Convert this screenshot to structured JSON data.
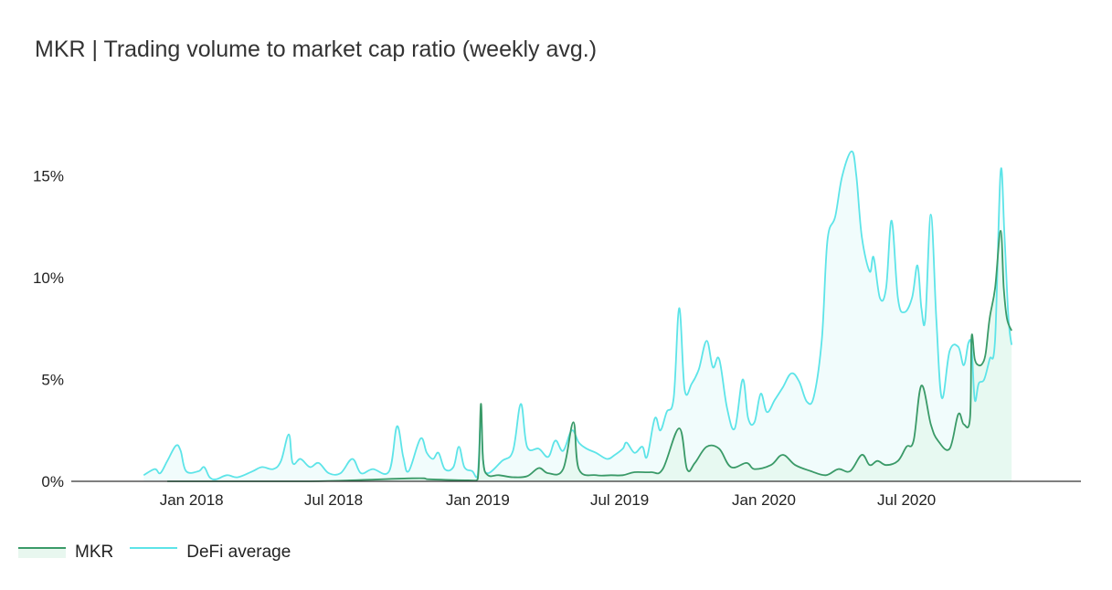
{
  "chart_data": {
    "type": "area",
    "title": "MKR | Trading volume to market cap ratio (weekly avg.)",
    "x_tick_labels": [
      "Jan 2018",
      "Jul 2018",
      "Jan 2019",
      "Jul 2019",
      "Jan 2020",
      "Jul 2020"
    ],
    "y_tick_labels": [
      "0%",
      "5%",
      "10%",
      "15%"
    ],
    "y_ticks": [
      0,
      5,
      10,
      15
    ],
    "ylim": [
      0,
      17
    ],
    "xlim": [
      "2017-09-01",
      "2021-01-01"
    ],
    "grid": false,
    "legend_position": "bottom-left",
    "colors": {
      "mkr_line": "#3a9a68",
      "mkr_fill": "#e6f8f0",
      "defi_line": "#5de4e8",
      "defi_fill": "#eefcfc",
      "axis": "#333333"
    },
    "series": [
      {
        "name": "MKR",
        "points": [
          [
            "2017-12-01",
            0.0
          ],
          [
            "2018-06-01",
            0.0
          ],
          [
            "2018-10-10",
            0.15
          ],
          [
            "2018-11-01",
            0.1
          ],
          [
            "2018-12-20",
            0.05
          ],
          [
            "2019-01-01",
            0.1
          ],
          [
            "2019-01-05",
            3.8
          ],
          [
            "2019-01-08",
            1.0
          ],
          [
            "2019-01-14",
            0.3
          ],
          [
            "2019-01-28",
            0.3
          ],
          [
            "2019-02-15",
            0.2
          ],
          [
            "2019-03-05",
            0.25
          ],
          [
            "2019-03-20",
            0.65
          ],
          [
            "2019-04-01",
            0.4
          ],
          [
            "2019-04-20",
            0.6
          ],
          [
            "2019-05-03",
            2.9
          ],
          [
            "2019-05-10",
            0.6
          ],
          [
            "2019-06-01",
            0.3
          ],
          [
            "2019-06-20",
            0.3
          ],
          [
            "2019-07-05",
            0.3
          ],
          [
            "2019-07-20",
            0.45
          ],
          [
            "2019-08-10",
            0.45
          ],
          [
            "2019-08-25",
            0.6
          ],
          [
            "2019-09-15",
            2.6
          ],
          [
            "2019-09-25",
            0.6
          ],
          [
            "2019-10-05",
            0.9
          ],
          [
            "2019-10-20",
            1.7
          ],
          [
            "2019-11-05",
            1.6
          ],
          [
            "2019-11-20",
            0.7
          ],
          [
            "2019-12-10",
            0.9
          ],
          [
            "2019-12-20",
            0.6
          ],
          [
            "2020-01-10",
            0.8
          ],
          [
            "2020-01-25",
            1.3
          ],
          [
            "2020-02-10",
            0.8
          ],
          [
            "2020-03-01",
            0.5
          ],
          [
            "2020-03-20",
            0.3
          ],
          [
            "2020-04-05",
            0.6
          ],
          [
            "2020-04-20",
            0.5
          ],
          [
            "2020-05-05",
            1.3
          ],
          [
            "2020-05-15",
            0.8
          ],
          [
            "2020-05-25",
            1.0
          ],
          [
            "2020-06-05",
            0.8
          ],
          [
            "2020-06-20",
            1.0
          ],
          [
            "2020-07-01",
            1.7
          ],
          [
            "2020-07-10",
            2.0
          ],
          [
            "2020-07-20",
            4.7
          ],
          [
            "2020-08-01",
            2.8
          ],
          [
            "2020-08-10",
            2.0
          ],
          [
            "2020-08-25",
            1.6
          ],
          [
            "2020-09-05",
            3.3
          ],
          [
            "2020-09-12",
            2.8
          ],
          [
            "2020-09-20",
            3.1
          ],
          [
            "2020-09-22",
            7.1
          ],
          [
            "2020-09-26",
            6.0
          ],
          [
            "2020-10-01",
            5.7
          ],
          [
            "2020-10-06",
            5.8
          ],
          [
            "2020-10-10",
            6.3
          ],
          [
            "2020-10-15",
            8.0
          ],
          [
            "2020-10-22",
            9.5
          ],
          [
            "2020-10-29",
            12.3
          ],
          [
            "2020-11-02",
            9.5
          ],
          [
            "2020-11-06",
            8.0
          ],
          [
            "2020-11-12",
            7.4
          ]
        ]
      },
      {
        "name": "DeFi average",
        "points": [
          [
            "2017-11-01",
            0.3
          ],
          [
            "2017-11-15",
            0.6
          ],
          [
            "2017-11-22",
            0.4
          ],
          [
            "2017-12-01",
            1.0
          ],
          [
            "2017-12-12",
            1.75
          ],
          [
            "2017-12-18",
            1.5
          ],
          [
            "2017-12-25",
            0.5
          ],
          [
            "2018-01-10",
            0.5
          ],
          [
            "2018-01-17",
            0.7
          ],
          [
            "2018-01-24",
            0.2
          ],
          [
            "2018-02-01",
            0.1
          ],
          [
            "2018-02-15",
            0.3
          ],
          [
            "2018-03-01",
            0.2
          ],
          [
            "2018-03-20",
            0.5
          ],
          [
            "2018-04-01",
            0.7
          ],
          [
            "2018-04-15",
            0.6
          ],
          [
            "2018-04-25",
            1.0
          ],
          [
            "2018-05-05",
            2.3
          ],
          [
            "2018-05-10",
            0.9
          ],
          [
            "2018-05-20",
            1.1
          ],
          [
            "2018-06-01",
            0.7
          ],
          [
            "2018-06-12",
            0.9
          ],
          [
            "2018-06-25",
            0.4
          ],
          [
            "2018-07-10",
            0.4
          ],
          [
            "2018-07-25",
            1.1
          ],
          [
            "2018-08-05",
            0.4
          ],
          [
            "2018-08-20",
            0.6
          ],
          [
            "2018-09-10",
            0.5
          ],
          [
            "2018-09-20",
            2.7
          ],
          [
            "2018-09-28",
            1.2
          ],
          [
            "2018-10-05",
            0.5
          ],
          [
            "2018-10-20",
            2.1
          ],
          [
            "2018-10-28",
            1.4
          ],
          [
            "2018-11-05",
            1.1
          ],
          [
            "2018-11-12",
            1.4
          ],
          [
            "2018-11-20",
            0.6
          ],
          [
            "2018-12-01",
            0.7
          ],
          [
            "2018-12-08",
            1.7
          ],
          [
            "2018-12-15",
            0.7
          ],
          [
            "2018-12-25",
            0.5
          ],
          [
            "2019-01-01",
            0.3
          ],
          [
            "2019-01-05",
            3.3
          ],
          [
            "2019-01-08",
            1.0
          ],
          [
            "2019-01-14",
            0.4
          ],
          [
            "2019-02-01",
            1.0
          ],
          [
            "2019-02-15",
            1.5
          ],
          [
            "2019-02-25",
            3.8
          ],
          [
            "2019-03-05",
            1.7
          ],
          [
            "2019-03-20",
            1.6
          ],
          [
            "2019-04-01",
            1.2
          ],
          [
            "2019-04-10",
            2.0
          ],
          [
            "2019-04-20",
            1.5
          ],
          [
            "2019-05-01",
            2.5
          ],
          [
            "2019-05-10",
            1.9
          ],
          [
            "2019-05-20",
            1.6
          ],
          [
            "2019-06-01",
            1.4
          ],
          [
            "2019-06-15",
            1.1
          ],
          [
            "2019-06-25",
            1.3
          ],
          [
            "2019-07-05",
            1.6
          ],
          [
            "2019-07-10",
            1.9
          ],
          [
            "2019-07-20",
            1.4
          ],
          [
            "2019-07-30",
            1.7
          ],
          [
            "2019-08-05",
            1.2
          ],
          [
            "2019-08-15",
            3.1
          ],
          [
            "2019-08-22",
            2.5
          ],
          [
            "2019-08-30",
            3.4
          ],
          [
            "2019-09-08",
            4.1
          ],
          [
            "2019-09-15",
            8.5
          ],
          [
            "2019-09-22",
            4.5
          ],
          [
            "2019-10-01",
            4.8
          ],
          [
            "2019-10-10",
            5.5
          ],
          [
            "2019-10-20",
            6.9
          ],
          [
            "2019-10-28",
            5.6
          ],
          [
            "2019-11-05",
            6.0
          ],
          [
            "2019-11-15",
            3.6
          ],
          [
            "2019-11-25",
            2.6
          ],
          [
            "2019-12-05",
            5.0
          ],
          [
            "2019-12-12",
            3.1
          ],
          [
            "2019-12-20",
            2.9
          ],
          [
            "2019-12-28",
            4.3
          ],
          [
            "2020-01-05",
            3.4
          ],
          [
            "2020-01-15",
            4.0
          ],
          [
            "2020-01-25",
            4.6
          ],
          [
            "2020-02-05",
            5.3
          ],
          [
            "2020-02-15",
            4.9
          ],
          [
            "2020-02-25",
            3.9
          ],
          [
            "2020-03-05",
            4.2
          ],
          [
            "2020-03-15",
            7.0
          ],
          [
            "2020-03-22",
            11.8
          ],
          [
            "2020-04-01",
            13.0
          ],
          [
            "2020-04-10",
            15.0
          ],
          [
            "2020-04-22",
            16.2
          ],
          [
            "2020-04-28",
            15.0
          ],
          [
            "2020-05-05",
            12.0
          ],
          [
            "2020-05-15",
            10.3
          ],
          [
            "2020-05-20",
            11.0
          ],
          [
            "2020-05-28",
            9.0
          ],
          [
            "2020-06-05",
            9.5
          ],
          [
            "2020-06-12",
            12.8
          ],
          [
            "2020-06-20",
            9.0
          ],
          [
            "2020-06-28",
            8.3
          ],
          [
            "2020-07-08",
            9.0
          ],
          [
            "2020-07-15",
            10.6
          ],
          [
            "2020-07-20",
            8.5
          ],
          [
            "2020-07-25",
            8.0
          ],
          [
            "2020-08-01",
            13.1
          ],
          [
            "2020-08-08",
            8.0
          ],
          [
            "2020-08-15",
            4.1
          ],
          [
            "2020-08-25",
            6.4
          ],
          [
            "2020-09-05",
            6.6
          ],
          [
            "2020-09-12",
            5.7
          ],
          [
            "2020-09-18",
            6.8
          ],
          [
            "2020-09-22",
            6.6
          ],
          [
            "2020-09-26",
            4.0
          ],
          [
            "2020-10-01",
            4.8
          ],
          [
            "2020-10-08",
            5.0
          ],
          [
            "2020-10-15",
            6.0
          ],
          [
            "2020-10-22",
            7.0
          ],
          [
            "2020-10-29",
            15.2
          ],
          [
            "2020-11-03",
            12.0
          ],
          [
            "2020-11-08",
            8.0
          ],
          [
            "2020-11-12",
            6.7
          ]
        ]
      }
    ]
  }
}
